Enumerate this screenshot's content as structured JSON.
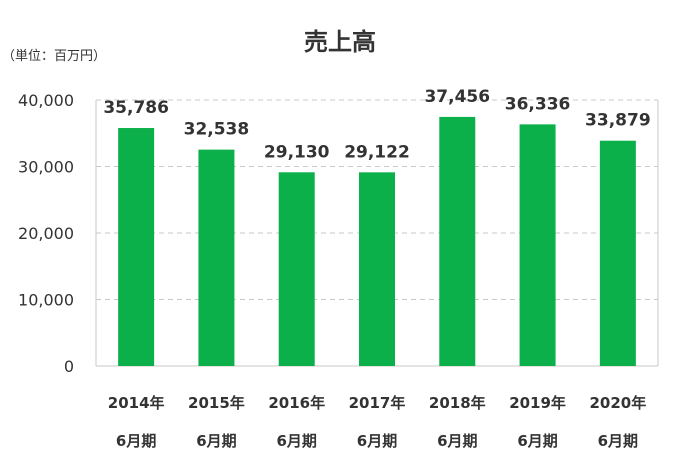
{
  "chart_data": {
    "type": "bar",
    "title": "売上高",
    "unit_label": "（単位：百万円）",
    "categories": [
      [
        "2014年",
        "6月期"
      ],
      [
        "2015年",
        "6月期"
      ],
      [
        "2016年",
        "6月期"
      ],
      [
        "2017年",
        "6月期"
      ],
      [
        "2018年",
        "6月期"
      ],
      [
        "2019年",
        "6月期"
      ],
      [
        "2020年",
        "6月期"
      ]
    ],
    "values": [
      35786,
      32538,
      29130,
      29122,
      37456,
      36336,
      33879
    ],
    "value_labels": [
      "35,786",
      "32,538",
      "29,130",
      "29,122",
      "37,456",
      "36,336",
      "33,879"
    ],
    "ylim": [
      0,
      40000
    ],
    "yticks": [
      0,
      10000,
      20000,
      30000,
      40000
    ],
    "ytick_labels": [
      "0",
      "10,000",
      "20,000",
      "30,000",
      "40,000"
    ],
    "grid": true,
    "bar_color": "#0bb04a",
    "grid_color": "#c8c8c8"
  }
}
